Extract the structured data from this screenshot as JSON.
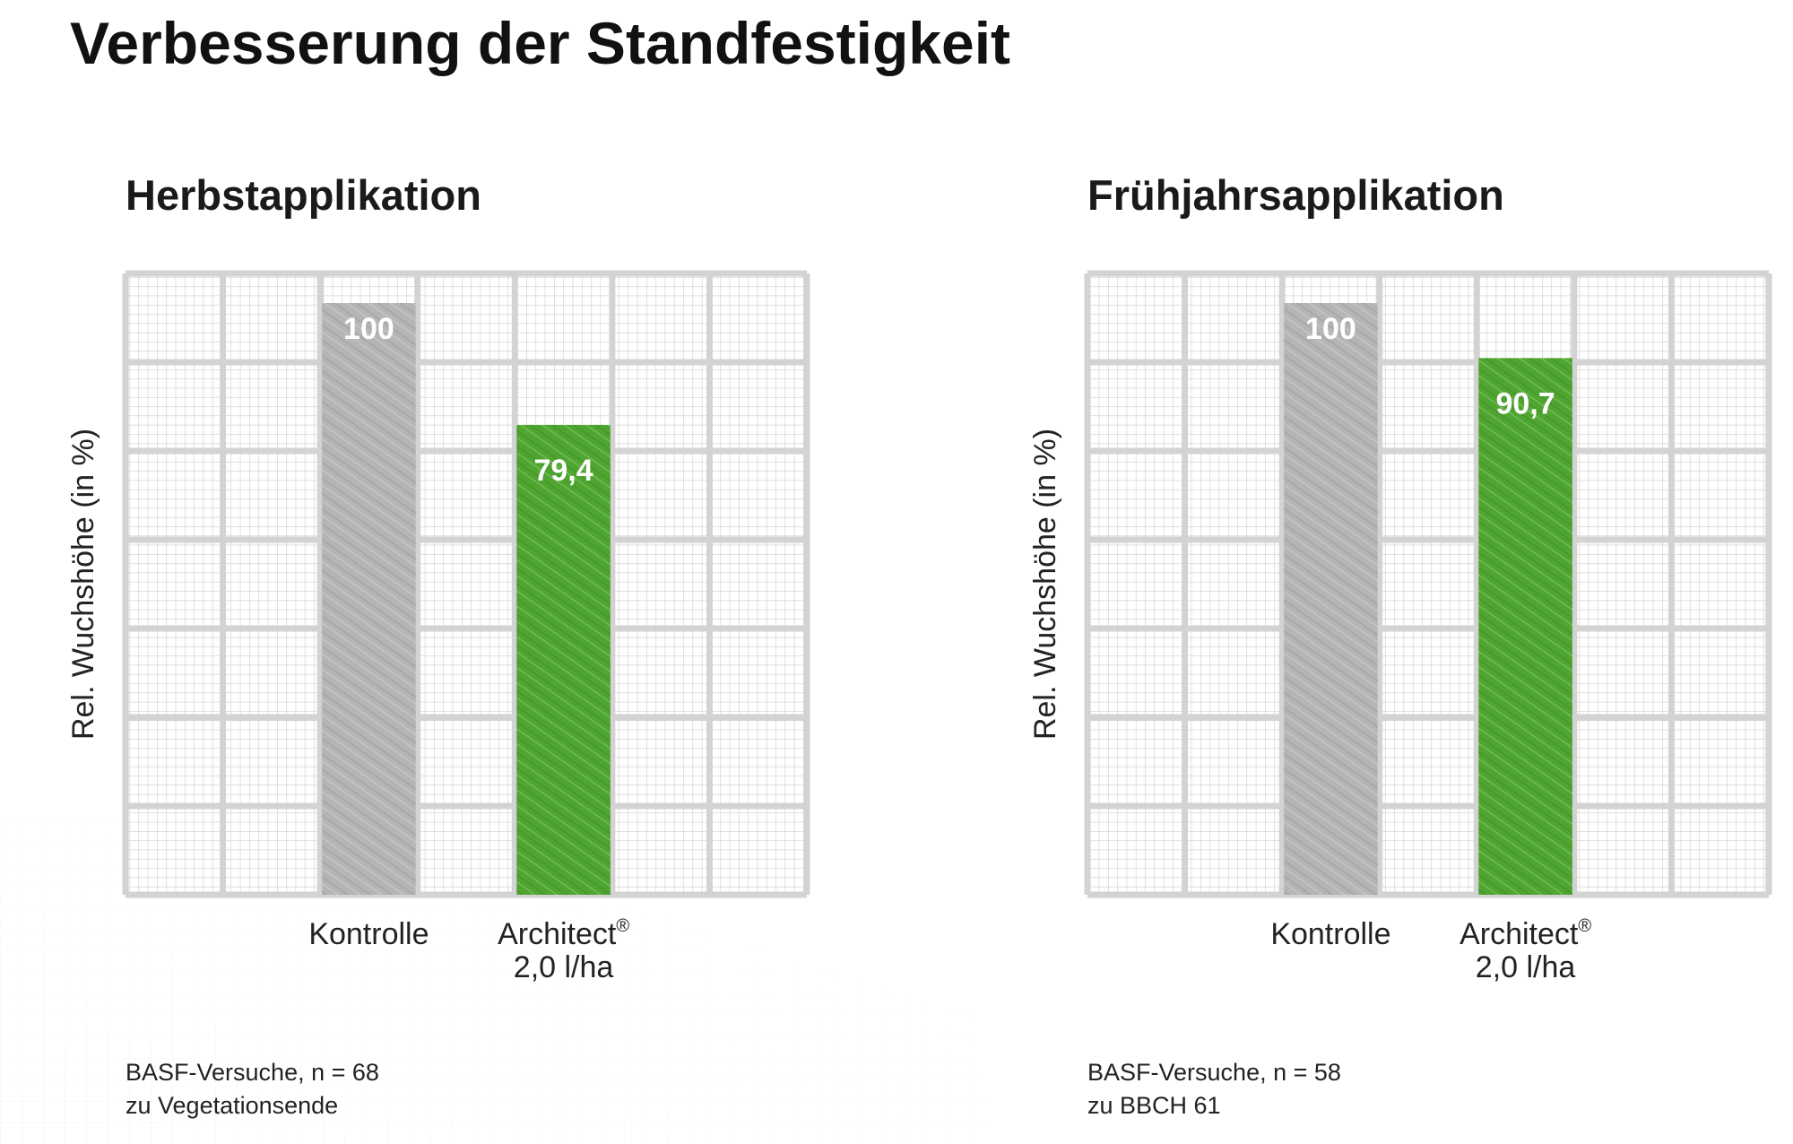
{
  "title": "Verbesserung der Standfestigkeit",
  "colors": {
    "control": "#b5b5b5",
    "treatment": "#4ea52f",
    "grid_fine": "#c9c9c9",
    "grid_major": "#d3d3d3",
    "value_label": "#ffffff"
  },
  "chart_data": [
    {
      "type": "bar",
      "title": "Herbstapplikation",
      "ylabel": "Rel. Wuchshöhe (in %)",
      "ylim": [
        0,
        105
      ],
      "grid": true,
      "categories": [
        {
          "line1": "Kontrolle",
          "line2": "",
          "superscript": ""
        },
        {
          "line1": "Architect",
          "line2": "2,0 l/ha",
          "superscript": "®"
        }
      ],
      "values": [
        100,
        79.4
      ],
      "value_labels": [
        "100",
        "79,4"
      ],
      "bar_colors": [
        "control",
        "treatment"
      ],
      "notes": [
        "BASF-Versuche, n = 68",
        "zu Vegetationsende"
      ]
    },
    {
      "type": "bar",
      "title": "Frühjahrsapplikation",
      "ylabel": "Rel. Wuchshöhe (in %)",
      "ylim": [
        0,
        105
      ],
      "grid": true,
      "categories": [
        {
          "line1": "Kontrolle",
          "line2": "",
          "superscript": ""
        },
        {
          "line1": "Architect",
          "line2": "2,0 l/ha",
          "superscript": "®"
        }
      ],
      "values": [
        100,
        90.7
      ],
      "value_labels": [
        "100",
        "90,7"
      ],
      "bar_colors": [
        "control",
        "treatment"
      ],
      "notes": [
        "BASF-Versuche, n = 58",
        "zu BBCH 61"
      ]
    }
  ]
}
